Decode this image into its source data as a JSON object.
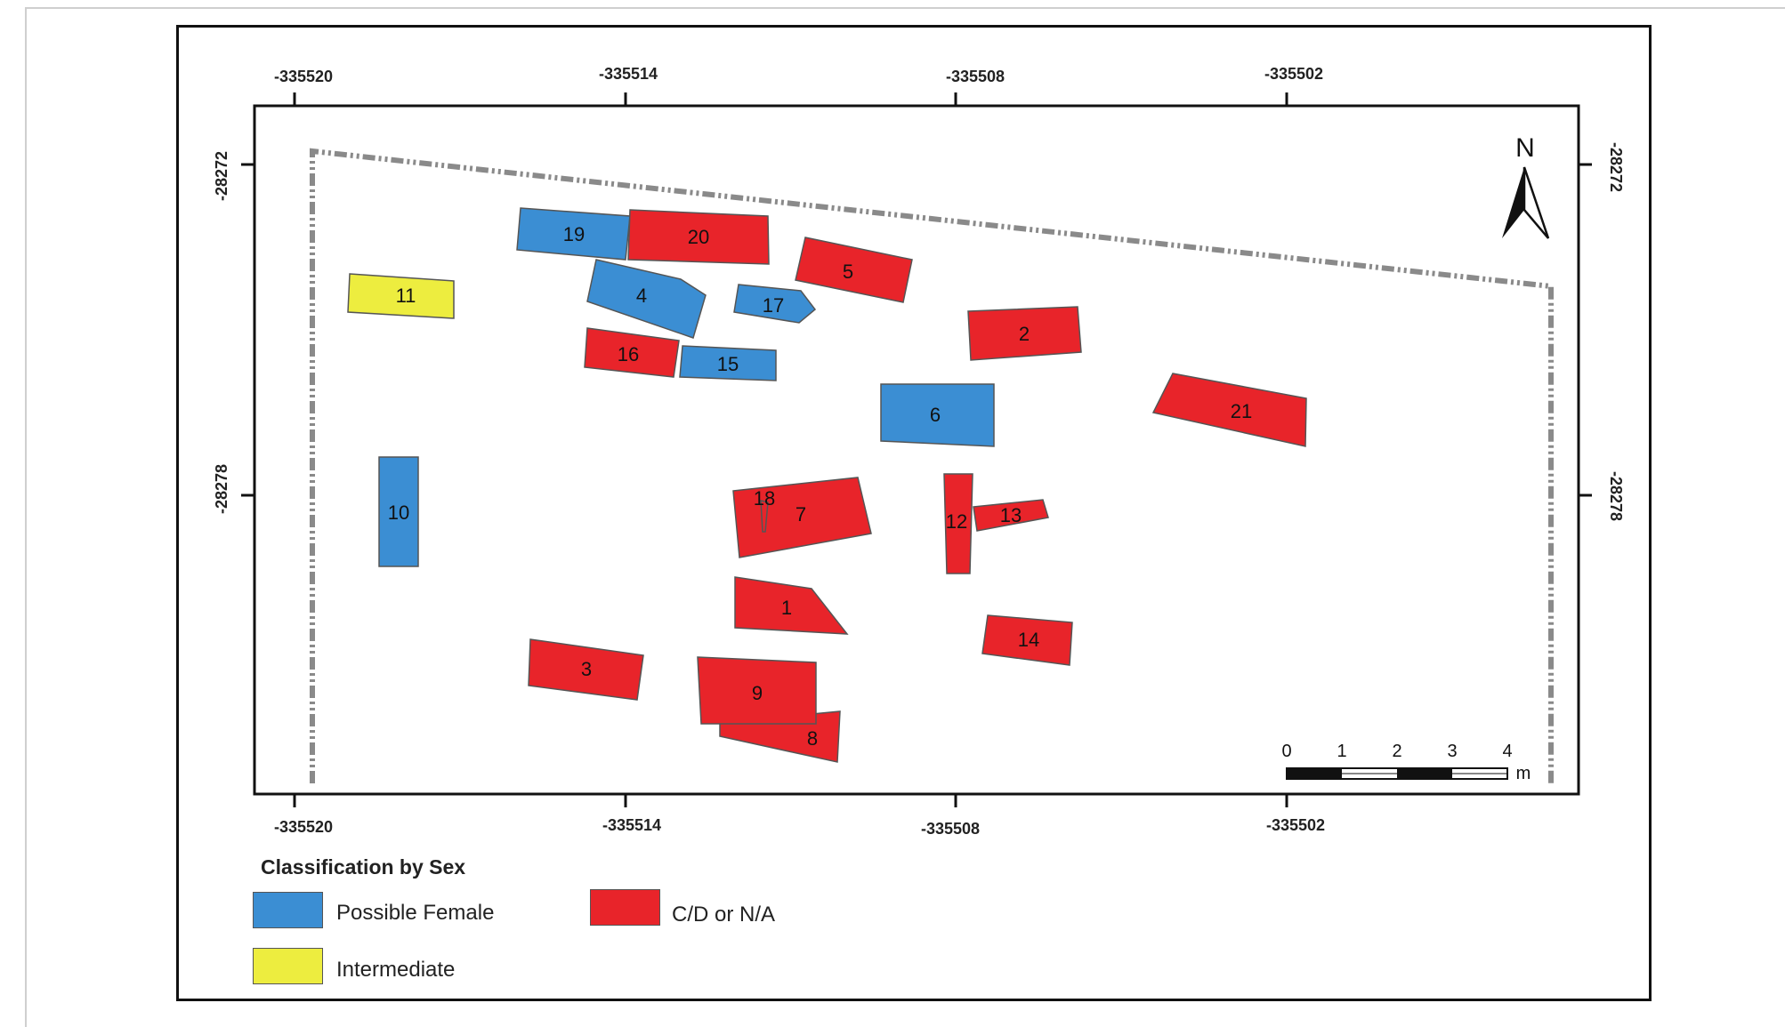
{
  "colors": {
    "possible_female": "#3b8ed3",
    "intermediate": "#eded3f",
    "cd_or_na": "#e8242a",
    "outline": "#555555",
    "boundary": "#8a8a8a"
  },
  "axes": {
    "x_ticks": [
      "-335520",
      "-335514",
      "-335508",
      "-335502"
    ],
    "y_ticks": [
      "-28272",
      "-28278"
    ]
  },
  "north_arrow": {
    "label": "N",
    "icon": "north-arrow-icon"
  },
  "scale_bar": {
    "labels": [
      "0",
      "1",
      "2",
      "3",
      "4"
    ],
    "unit": "m"
  },
  "legend": {
    "title": "Classification by Sex",
    "items": [
      {
        "label": "Possible Female",
        "category": "possible_female"
      },
      {
        "label": "C/D or N/A",
        "category": "cd_or_na"
      },
      {
        "label": "Intermediate",
        "category": "intermediate"
      }
    ]
  },
  "burials": [
    {
      "id": "1",
      "category": "cd_or_na"
    },
    {
      "id": "2",
      "category": "cd_or_na"
    },
    {
      "id": "3",
      "category": "cd_or_na"
    },
    {
      "id": "4",
      "category": "possible_female"
    },
    {
      "id": "5",
      "category": "cd_or_na"
    },
    {
      "id": "6",
      "category": "possible_female"
    },
    {
      "id": "7",
      "category": "cd_or_na"
    },
    {
      "id": "8",
      "category": "cd_or_na"
    },
    {
      "id": "9",
      "category": "cd_or_na"
    },
    {
      "id": "10",
      "category": "possible_female"
    },
    {
      "id": "11",
      "category": "intermediate"
    },
    {
      "id": "12",
      "category": "cd_or_na"
    },
    {
      "id": "13",
      "category": "cd_or_na"
    },
    {
      "id": "14",
      "category": "cd_or_na"
    },
    {
      "id": "15",
      "category": "possible_female"
    },
    {
      "id": "16",
      "category": "cd_or_na"
    },
    {
      "id": "17",
      "category": "possible_female"
    },
    {
      "id": "18",
      "category": "cd_or_na"
    },
    {
      "id": "19",
      "category": "possible_female"
    },
    {
      "id": "20",
      "category": "cd_or_na"
    },
    {
      "id": "21",
      "category": "cd_or_na"
    }
  ]
}
